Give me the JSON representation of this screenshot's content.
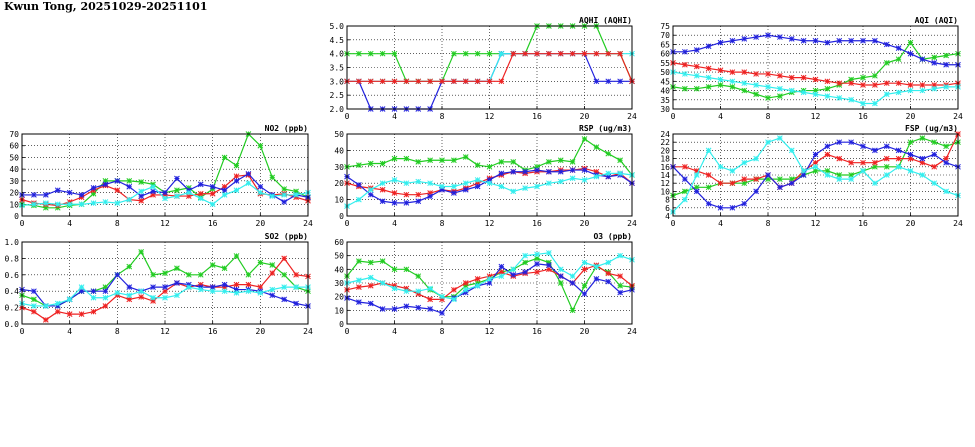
{
  "page": {
    "title": "Kwun Tong, 20251029-20251101"
  },
  "colors": {
    "green": "#22cc22",
    "red": "#ee2222",
    "blue": "#2222dd",
    "cyan": "#33eeee"
  },
  "chart_data": [
    {
      "id": "no2",
      "type": "line",
      "title": "NO2 (ppb)",
      "xlim": [
        0,
        24
      ],
      "xticks": [
        0,
        4,
        8,
        12,
        16,
        20,
        24
      ],
      "ylim": [
        0,
        70
      ],
      "yticks": [
        0,
        10,
        20,
        30,
        40,
        50,
        60,
        70
      ],
      "x": [
        0,
        1,
        2,
        3,
        4,
        5,
        6,
        7,
        8,
        9,
        10,
        11,
        12,
        13,
        14,
        15,
        16,
        17,
        18,
        19,
        20,
        21,
        22,
        23,
        24
      ],
      "series": [
        {
          "name": "green",
          "values": [
            10,
            9,
            7,
            7,
            9,
            10,
            19,
            30,
            30,
            30,
            29,
            27,
            20,
            22,
            24,
            16,
            23,
            50,
            43,
            70,
            60,
            33,
            23,
            21,
            16
          ]
        },
        {
          "name": "red",
          "values": [
            14,
            11,
            10,
            9,
            12,
            16,
            22,
            26,
            22,
            14,
            13,
            18,
            18,
            17,
            17,
            19,
            19,
            25,
            34,
            35,
            19,
            18,
            19,
            16,
            13
          ]
        },
        {
          "name": "blue",
          "values": [
            18,
            18,
            18,
            22,
            20,
            18,
            24,
            27,
            30,
            25,
            17,
            21,
            20,
            32,
            22,
            27,
            25,
            22,
            30,
            36,
            25,
            18,
            12,
            18,
            16
          ]
        },
        {
          "name": "cyan",
          "values": [
            9,
            10,
            11,
            10,
            10,
            10,
            11,
            12,
            11,
            14,
            21,
            25,
            15,
            17,
            20,
            15,
            10,
            18,
            22,
            28,
            20,
            17,
            18,
            18,
            20
          ]
        }
      ]
    },
    {
      "id": "so2",
      "type": "line",
      "title": "SO2 (ppb)",
      "xlim": [
        0,
        24
      ],
      "xticks": [
        0,
        4,
        8,
        12,
        16,
        20,
        24
      ],
      "ylim": [
        0,
        1.0
      ],
      "yticks": [
        0.0,
        0.2,
        0.4,
        0.6,
        0.8,
        1.0
      ],
      "x": [
        0,
        1,
        2,
        3,
        4,
        5,
        6,
        7,
        8,
        9,
        10,
        11,
        12,
        13,
        14,
        15,
        16,
        17,
        18,
        19,
        20,
        21,
        22,
        23,
        24
      ],
      "series": [
        {
          "name": "green",
          "values": [
            0.35,
            0.3,
            0.22,
            0.22,
            0.3,
            0.4,
            0.4,
            0.45,
            0.6,
            0.7,
            0.88,
            0.6,
            0.62,
            0.68,
            0.6,
            0.6,
            0.72,
            0.68,
            0.83,
            0.6,
            0.75,
            0.72,
            0.6,
            0.45,
            0.4
          ]
        },
        {
          "name": "red",
          "values": [
            0.2,
            0.15,
            0.05,
            0.15,
            0.12,
            0.12,
            0.15,
            0.22,
            0.35,
            0.3,
            0.33,
            0.28,
            0.4,
            0.5,
            0.45,
            0.48,
            0.45,
            0.45,
            0.48,
            0.48,
            0.45,
            0.62,
            0.8,
            0.6,
            0.58
          ]
        },
        {
          "name": "blue",
          "values": [
            0.42,
            0.4,
            0.22,
            0.22,
            0.3,
            0.4,
            0.4,
            0.4,
            0.6,
            0.45,
            0.4,
            0.45,
            0.45,
            0.5,
            0.48,
            0.45,
            0.45,
            0.48,
            0.42,
            0.42,
            0.4,
            0.35,
            0.3,
            0.25,
            0.22
          ]
        },
        {
          "name": "cyan",
          "values": [
            0.25,
            0.22,
            0.22,
            0.25,
            0.3,
            0.45,
            0.32,
            0.32,
            0.38,
            0.35,
            0.4,
            0.32,
            0.32,
            0.35,
            0.45,
            0.42,
            0.4,
            0.4,
            0.38,
            0.4,
            0.38,
            0.42,
            0.45,
            0.45,
            0.45
          ]
        }
      ]
    },
    {
      "id": "aqhi",
      "type": "line",
      "title": "AQHI (AQHI)",
      "xlim": [
        0,
        24
      ],
      "xticks": [
        0,
        4,
        8,
        12,
        16,
        20,
        24
      ],
      "ylim": [
        2.0,
        5.0
      ],
      "yticks": [
        2.0,
        2.5,
        3.0,
        3.5,
        4.0,
        4.5,
        5.0
      ],
      "x": [
        0,
        1,
        2,
        3,
        4,
        5,
        6,
        7,
        8,
        9,
        10,
        11,
        12,
        13,
        14,
        15,
        16,
        17,
        18,
        19,
        20,
        21,
        22,
        23,
        24
      ],
      "series": [
        {
          "name": "green",
          "values": [
            4,
            4,
            4,
            4,
            4,
            3,
            3,
            3,
            3,
            4,
            4,
            4,
            4,
            4,
            4,
            4,
            5,
            5,
            5,
            5,
            5,
            5,
            4,
            4,
            3
          ]
        },
        {
          "name": "blue",
          "values": [
            3,
            3,
            2,
            2,
            2,
            2,
            2,
            2,
            3,
            3,
            3,
            3,
            3,
            4,
            4,
            4,
            4,
            4,
            4,
            4,
            4,
            3,
            3,
            3,
            3
          ]
        },
        {
          "name": "cyan",
          "values": [
            3,
            3,
            3,
            3,
            3,
            3,
            3,
            3,
            3,
            3,
            3,
            3,
            3,
            4,
            4,
            4,
            4,
            4,
            4,
            4,
            4,
            4,
            4,
            4,
            4
          ]
        },
        {
          "name": "red",
          "values": [
            3,
            3,
            3,
            3,
            3,
            3,
            3,
            3,
            3,
            3,
            3,
            3,
            3,
            3,
            4,
            4,
            4,
            4,
            4,
            4,
            4,
            4,
            4,
            4,
            3
          ]
        }
      ]
    },
    {
      "id": "rsp",
      "type": "line",
      "title": "RSP (ug/m3)",
      "xlim": [
        0,
        24
      ],
      "xticks": [
        0,
        4,
        8,
        12,
        16,
        20,
        24
      ],
      "ylim": [
        0,
        50
      ],
      "yticks": [
        0,
        10,
        20,
        30,
        40,
        50
      ],
      "x": [
        0,
        1,
        2,
        3,
        4,
        5,
        6,
        7,
        8,
        9,
        10,
        11,
        12,
        13,
        14,
        15,
        16,
        17,
        18,
        19,
        20,
        21,
        22,
        23,
        24
      ],
      "series": [
        {
          "name": "green",
          "values": [
            30,
            31,
            32,
            32,
            35,
            35,
            33,
            34,
            34,
            34,
            36,
            31,
            30,
            33,
            33,
            28,
            30,
            33,
            34,
            33,
            47,
            42,
            38,
            34,
            25
          ]
        },
        {
          "name": "red",
          "values": [
            20,
            18,
            17,
            16,
            14,
            13,
            13,
            14,
            16,
            15,
            17,
            20,
            23,
            25,
            27,
            26,
            27,
            27,
            28,
            28,
            29,
            27,
            24,
            26,
            20
          ]
        },
        {
          "name": "blue",
          "values": [
            24,
            19,
            13,
            9,
            8,
            8,
            9,
            12,
            16,
            14,
            16,
            18,
            22,
            26,
            27,
            27,
            28,
            27,
            27,
            28,
            28,
            25,
            24,
            25,
            20
          ]
        },
        {
          "name": "cyan",
          "values": [
            6,
            10,
            16,
            20,
            22,
            20,
            21,
            20,
            18,
            18,
            20,
            22,
            20,
            18,
            15,
            17,
            18,
            20,
            21,
            23,
            22,
            24,
            26,
            26,
            25
          ]
        }
      ]
    },
    {
      "id": "o3",
      "type": "line",
      "title": "O3 (ppb)",
      "xlim": [
        0,
        24
      ],
      "xticks": [
        0,
        4,
        8,
        12,
        16,
        20,
        24
      ],
      "ylim": [
        0,
        60
      ],
      "yticks": [
        0,
        10,
        20,
        30,
        40,
        50,
        60
      ],
      "x": [
        0,
        1,
        2,
        3,
        4,
        5,
        6,
        7,
        8,
        9,
        10,
        11,
        12,
        13,
        14,
        15,
        16,
        17,
        18,
        19,
        20,
        21,
        22,
        23,
        24
      ],
      "series": [
        {
          "name": "green",
          "values": [
            35,
            46,
            45,
            46,
            40,
            40,
            35,
            25,
            20,
            20,
            28,
            30,
            33,
            38,
            40,
            45,
            48,
            45,
            30,
            10,
            28,
            42,
            38,
            28,
            27
          ]
        },
        {
          "name": "red",
          "values": [
            25,
            27,
            28,
            30,
            28,
            26,
            22,
            18,
            18,
            25,
            30,
            33,
            35,
            38,
            35,
            37,
            38,
            40,
            35,
            30,
            40,
            43,
            37,
            35,
            28
          ]
        },
        {
          "name": "blue",
          "values": [
            19,
            16,
            15,
            11,
            11,
            13,
            12,
            11,
            8,
            19,
            23,
            28,
            30,
            42,
            36,
            38,
            44,
            43,
            35,
            30,
            22,
            33,
            31,
            23,
            25
          ]
        },
        {
          "name": "cyan",
          "values": [
            30,
            32,
            34,
            30,
            26,
            24,
            24,
            26,
            20,
            18,
            25,
            28,
            33,
            35,
            40,
            50,
            51,
            52,
            40,
            35,
            45,
            42,
            45,
            50,
            47
          ]
        }
      ]
    },
    {
      "id": "aqi",
      "type": "line",
      "title": "AQI (AQI)",
      "xlim": [
        0,
        24
      ],
      "xticks": [
        0,
        4,
        8,
        12,
        16,
        20,
        24
      ],
      "ylim": [
        30,
        75
      ],
      "yticks": [
        30,
        35,
        40,
        45,
        50,
        55,
        60,
        65,
        70,
        75
      ],
      "x": [
        0,
        1,
        2,
        3,
        4,
        5,
        6,
        7,
        8,
        9,
        10,
        11,
        12,
        13,
        14,
        15,
        16,
        17,
        18,
        19,
        20,
        21,
        22,
        23,
        24
      ],
      "series": [
        {
          "name": "green",
          "values": [
            42,
            41,
            41,
            42,
            43,
            42,
            40,
            38,
            36,
            37,
            39,
            40,
            40,
            41,
            43,
            46,
            47,
            48,
            55,
            57,
            66,
            57,
            58,
            59,
            60
          ]
        },
        {
          "name": "red",
          "values": [
            55,
            54,
            53,
            52,
            51,
            50,
            50,
            49,
            49,
            48,
            47,
            47,
            46,
            45,
            44,
            44,
            43,
            43,
            44,
            44,
            43,
            43,
            43,
            43,
            44
          ]
        },
        {
          "name": "blue",
          "values": [
            61,
            61,
            62,
            64,
            66,
            67,
            68,
            69,
            70,
            69,
            68,
            67,
            67,
            66,
            67,
            67,
            67,
            67,
            65,
            63,
            60,
            57,
            55,
            54,
            54
          ]
        },
        {
          "name": "cyan",
          "values": [
            50,
            49,
            48,
            47,
            46,
            45,
            44,
            43,
            42,
            41,
            40,
            39,
            38,
            37,
            36,
            35,
            33,
            33,
            38,
            39,
            40,
            40,
            41,
            42,
            42
          ]
        }
      ]
    },
    {
      "id": "fsp",
      "type": "line",
      "title": "FSP (ug/m3)",
      "xlim": [
        0,
        24
      ],
      "xticks": [
        0,
        4,
        8,
        12,
        16,
        20,
        24
      ],
      "ylim": [
        4,
        24
      ],
      "yticks": [
        4,
        6,
        8,
        10,
        12,
        14,
        16,
        18,
        20,
        22,
        24
      ],
      "x": [
        0,
        1,
        2,
        3,
        4,
        5,
        6,
        7,
        8,
        9,
        10,
        11,
        12,
        13,
        14,
        15,
        16,
        17,
        18,
        19,
        20,
        21,
        22,
        23,
        24
      ],
      "series": [
        {
          "name": "green",
          "values": [
            9,
            10,
            11,
            11,
            12,
            12,
            12,
            13,
            13,
            13,
            13,
            14,
            15,
            15,
            14,
            14,
            15,
            16,
            16,
            16,
            22,
            23,
            22,
            21,
            22
          ]
        },
        {
          "name": "red",
          "values": [
            16,
            16,
            15,
            14,
            12,
            12,
            13,
            13,
            14,
            11,
            12,
            15,
            17,
            19,
            18,
            17,
            17,
            17,
            18,
            18,
            18,
            17,
            16,
            18,
            24
          ]
        },
        {
          "name": "blue",
          "values": [
            16,
            13,
            10,
            7,
            6,
            6,
            7,
            10,
            14,
            11,
            12,
            14,
            19,
            21,
            22,
            22,
            21,
            20,
            21,
            20,
            19,
            18,
            19,
            17,
            16
          ]
        },
        {
          "name": "cyan",
          "values": [
            5,
            8,
            14,
            20,
            16,
            15,
            17,
            18,
            22,
            23,
            20,
            15,
            16,
            14,
            13,
            13,
            15,
            12,
            14,
            16,
            15,
            14,
            12,
            10,
            9
          ]
        }
      ]
    }
  ]
}
